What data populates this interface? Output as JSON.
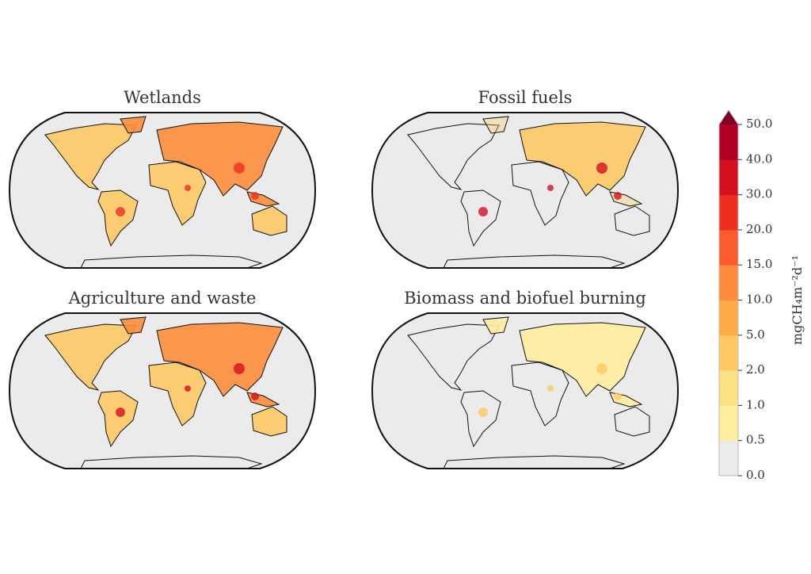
{
  "panels": [
    {
      "title": "Wetlands"
    },
    {
      "title": "Fossil fuels"
    },
    {
      "title": "Agriculture and waste"
    },
    {
      "title": "Biomass and biofuel burning"
    }
  ],
  "colorbar": {
    "label": "mgCH₄m⁻²d⁻¹",
    "ticks": [
      {
        "value": 0,
        "label": "0.0"
      },
      {
        "value": 0.5,
        "label": "0.5"
      },
      {
        "value": 1,
        "label": "1.0"
      },
      {
        "value": 2,
        "label": "2.0"
      },
      {
        "value": 5,
        "label": "5.0"
      },
      {
        "value": 10,
        "label": "10.0"
      },
      {
        "value": 15,
        "label": "15.0"
      },
      {
        "value": 20,
        "label": "20.0"
      },
      {
        "value": 30,
        "label": "30.0"
      },
      {
        "value": 40,
        "label": "40.0"
      },
      {
        "value": 50,
        "label": "50.0"
      }
    ],
    "colors": [
      "#ebebeb",
      "#ffeda0",
      "#fee085",
      "#fec965",
      "#feab49",
      "#fd8d3c",
      "#fc5b2e",
      "#ed2e21",
      "#d41020",
      "#b00026"
    ],
    "extend_color": "#800026"
  }
}
